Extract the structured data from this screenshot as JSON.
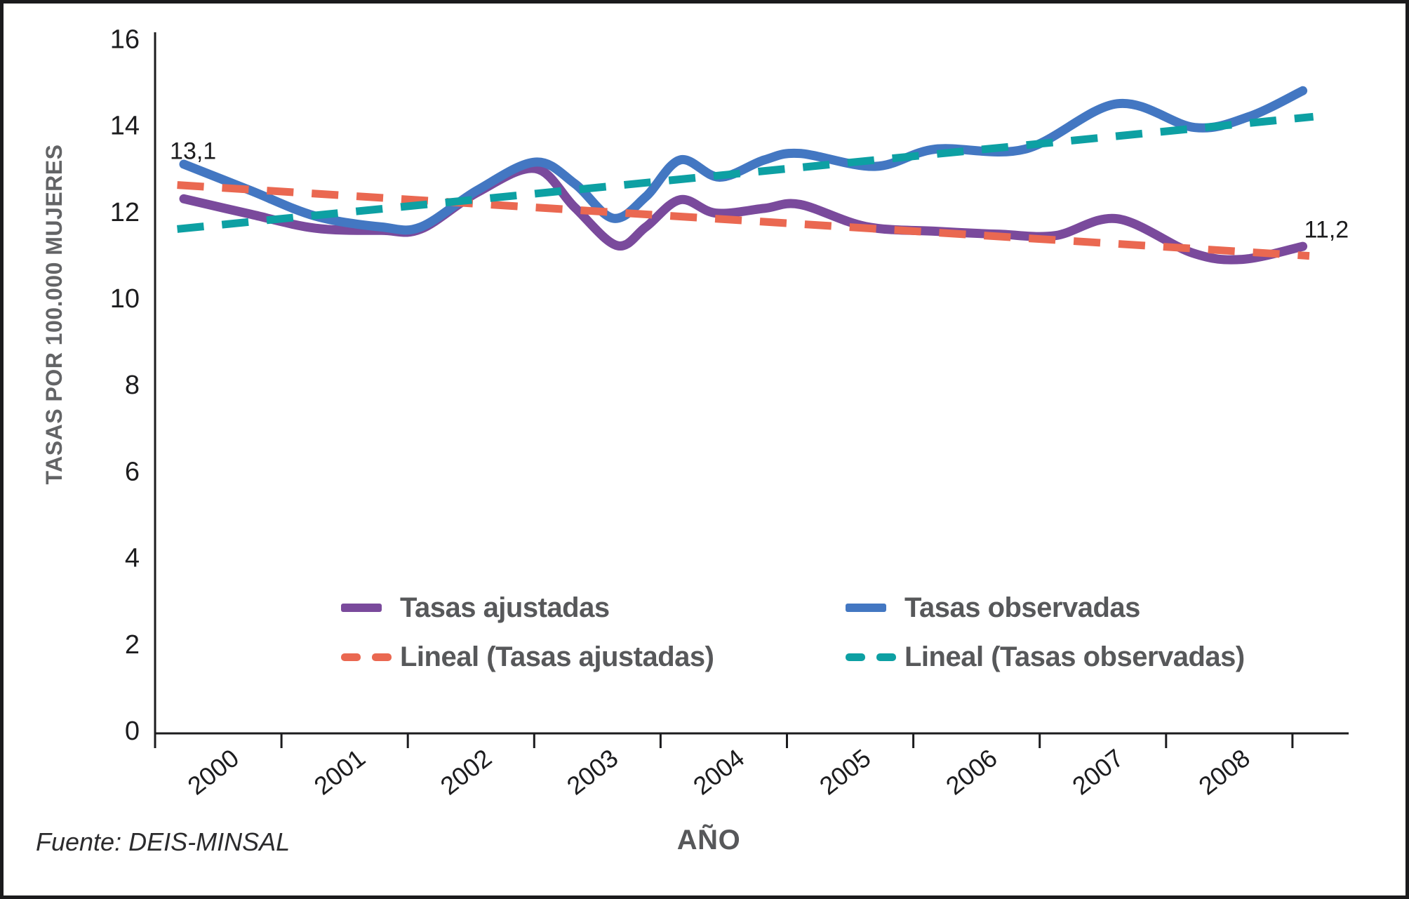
{
  "window": {
    "background": "#ffffff",
    "border_color": "#1b1b1d"
  },
  "source_note": "Fuente: DEIS-MINSAL",
  "colors": {
    "tasas_ajustadas": "#7a4a9c",
    "tasas_observadas": "#4377c2",
    "lineal_ajustadas": "#ea6851",
    "lineal_observadas": "#0da0a3",
    "axis": "#1c1c1e",
    "tick_text": "#1c1c1e",
    "label_gray": "#57585a",
    "ylabel_gray": "#636466"
  },
  "chart_data": {
    "type": "line",
    "title": "",
    "xlabel": "AÑO",
    "ylabel": "TASAS POR 100.000 MUJERES",
    "ylim": [
      0,
      16
    ],
    "yticks": [
      0,
      2,
      4,
      6,
      8,
      10,
      12,
      14,
      16
    ],
    "categories": [
      "2000",
      "2001",
      "2002",
      "2003",
      "2004",
      "2005",
      "2006",
      "2007",
      "2008"
    ],
    "grid": false,
    "legend_position": "inside-bottom-two-columns",
    "series": [
      {
        "name": "Tasas ajustadas",
        "color": "#7a4a9c",
        "style": "solid",
        "points": [
          [
            2000.0,
            12.3
          ],
          [
            2000.5,
            11.95
          ],
          [
            2001.0,
            11.62
          ],
          [
            2001.5,
            11.57
          ],
          [
            2001.8,
            11.6
          ],
          [
            2002.23,
            12.45
          ],
          [
            2002.67,
            13.0
          ],
          [
            2002.97,
            12.1
          ],
          [
            2003.29,
            11.22
          ],
          [
            2003.51,
            11.65
          ],
          [
            2003.77,
            12.28
          ],
          [
            2004.04,
            11.97
          ],
          [
            2004.41,
            12.08
          ],
          [
            2004.68,
            12.17
          ],
          [
            2005.18,
            11.66
          ],
          [
            2005.71,
            11.55
          ],
          [
            2006.2,
            11.48
          ],
          [
            2006.62,
            11.45
          ],
          [
            2007.09,
            11.84
          ],
          [
            2007.66,
            11.05
          ],
          [
            2008.04,
            10.9
          ],
          [
            2008.5,
            11.2
          ]
        ]
      },
      {
        "name": "Tasas observadas",
        "color": "#4377c2",
        "style": "solid",
        "points": [
          [
            2000.0,
            13.1
          ],
          [
            2000.5,
            12.5
          ],
          [
            2001.0,
            11.9
          ],
          [
            2001.5,
            11.65
          ],
          [
            2001.8,
            11.65
          ],
          [
            2002.23,
            12.5
          ],
          [
            2002.67,
            13.15
          ],
          [
            2002.97,
            12.65
          ],
          [
            2003.26,
            11.85
          ],
          [
            2003.51,
            12.35
          ],
          [
            2003.77,
            13.2
          ],
          [
            2004.07,
            12.8
          ],
          [
            2004.41,
            13.2
          ],
          [
            2004.68,
            13.35
          ],
          [
            2005.25,
            13.05
          ],
          [
            2005.71,
            13.45
          ],
          [
            2006.39,
            13.45
          ],
          [
            2007.09,
            14.5
          ],
          [
            2007.68,
            13.95
          ],
          [
            2008.09,
            14.2
          ],
          [
            2008.5,
            14.8
          ]
        ]
      },
      {
        "name": "Lineal (Tasas ajustadas)",
        "color": "#ea6851",
        "style": "dashed",
        "points": [
          [
            1999.95,
            12.62
          ],
          [
            2008.55,
            10.98
          ]
        ]
      },
      {
        "name": "Lineal (Tasas observadas)",
        "color": "#0da0a3",
        "style": "dashed",
        "points": [
          [
            1999.95,
            11.6
          ],
          [
            2008.58,
            14.2
          ]
        ]
      }
    ],
    "annotations": [
      {
        "text": "13,1",
        "x": 2000.07,
        "y": 13.42
      },
      {
        "text": "11,2",
        "x": 2008.68,
        "y": 11.6
      }
    ]
  },
  "legend": {
    "columns": [
      {
        "items": [
          {
            "label": "Tasas ajustadas",
            "color": "#7a4a9c",
            "dash": false
          },
          {
            "label": "Lineal (Tasas ajustadas)",
            "color": "#ea6851",
            "dash": true
          }
        ]
      },
      {
        "items": [
          {
            "label": "Tasas observadas",
            "color": "#4377c2",
            "dash": false
          },
          {
            "label": "Lineal (Tasas observadas)",
            "color": "#0da0a3",
            "dash": true
          }
        ]
      }
    ]
  }
}
